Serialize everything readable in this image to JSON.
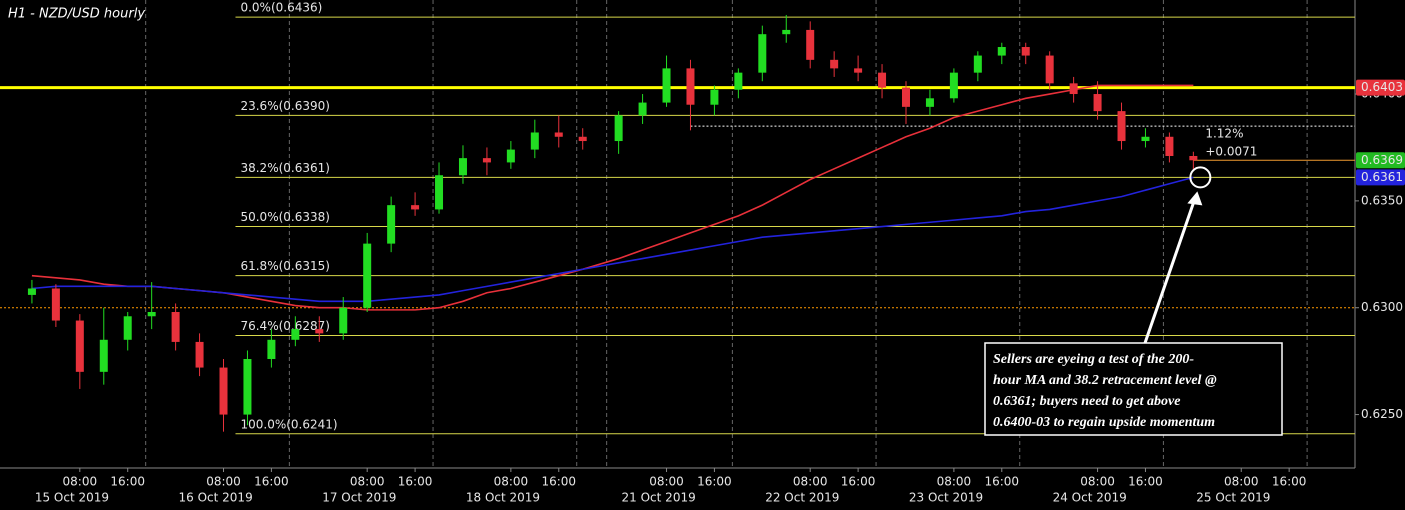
{
  "chart_data": {
    "type": "candlestick",
    "title": "H1 - NZD/USD hourly",
    "xlim": [
      "2019-10-14T18:40",
      "2019-10-26T03:00"
    ],
    "x_gap": [
      "2019-10-19T00:00",
      "2019-10-20T22:00"
    ],
    "ylim": [
      0.6225,
      0.6444
    ],
    "yticks": [
      {
        "value": 0.625,
        "label": "0.6250"
      },
      {
        "value": 0.63,
        "label": "0.6300"
      },
      {
        "value": 0.635,
        "label": "0.6350"
      },
      {
        "value": 0.64,
        "label": "0.6400"
      }
    ],
    "xticks": [
      {
        "value": "2019-10-15T08:00",
        "label": "08:00"
      },
      {
        "value": "2019-10-15T16:00",
        "label": "16:00"
      },
      {
        "value": "2019-10-16T08:00",
        "label": "08:00"
      },
      {
        "value": "2019-10-16T16:00",
        "label": "16:00"
      },
      {
        "value": "2019-10-17T08:00",
        "label": "08:00"
      },
      {
        "value": "2019-10-17T16:00",
        "label": "16:00"
      },
      {
        "value": "2019-10-18T08:00",
        "label": "08:00"
      },
      {
        "value": "2019-10-18T16:00",
        "label": "16:00"
      },
      {
        "value": "2019-10-21T08:00",
        "label": "08:00"
      },
      {
        "value": "2019-10-21T16:00",
        "label": "16:00"
      },
      {
        "value": "2019-10-22T08:00",
        "label": "08:00"
      },
      {
        "value": "2019-10-22T16:00",
        "label": "16:00"
      },
      {
        "value": "2019-10-23T08:00",
        "label": "08:00"
      },
      {
        "value": "2019-10-23T16:00",
        "label": "16:00"
      },
      {
        "value": "2019-10-24T08:00",
        "label": "08:00"
      },
      {
        "value": "2019-10-24T16:00",
        "label": "16:00"
      },
      {
        "value": "2019-10-25T08:00",
        "label": "08:00"
      },
      {
        "value": "2019-10-25T16:00",
        "label": "16:00"
      }
    ],
    "date_labels": [
      {
        "value": "2019-10-15",
        "label": "15 Oct 2019"
      },
      {
        "value": "2019-10-16",
        "label": "16 Oct 2019"
      },
      {
        "value": "2019-10-17",
        "label": "17 Oct 2019"
      },
      {
        "value": "2019-10-18",
        "label": "18 Oct 2019"
      },
      {
        "value": "2019-10-21",
        "label": "21 Oct 2019"
      },
      {
        "value": "2019-10-22",
        "label": "22 Oct 2019"
      },
      {
        "value": "2019-10-23",
        "label": "23 Oct 2019"
      },
      {
        "value": "2019-10-24",
        "label": "24 Oct 2019"
      },
      {
        "value": "2019-10-25",
        "label": "25 Oct 2019"
      }
    ],
    "x_separators": [
      "2019-10-15T19:00",
      "2019-10-16T19:00",
      "2019-10-17T19:00",
      "2019-10-18T19:00",
      "2019-10-20T19:00",
      "2019-10-21T19:00",
      "2019-10-22T19:00",
      "2019-10-23T19:00",
      "2019-10-24T19:00",
      "2019-10-25T19:00"
    ],
    "up_color": "#22dd22",
    "down_color": "#e8323c",
    "x": [
      "2019-10-15T00:00",
      "2019-10-15T04:00",
      "2019-10-15T08:00",
      "2019-10-15T12:00",
      "2019-10-15T16:00",
      "2019-10-15T20:00",
      "2019-10-16T00:00",
      "2019-10-16T04:00",
      "2019-10-16T08:00",
      "2019-10-16T12:00",
      "2019-10-16T16:00",
      "2019-10-16T20:00",
      "2019-10-17T00:00",
      "2019-10-17T04:00",
      "2019-10-17T08:00",
      "2019-10-17T12:00",
      "2019-10-17T16:00",
      "2019-10-17T20:00",
      "2019-10-18T00:00",
      "2019-10-18T04:00",
      "2019-10-18T08:00",
      "2019-10-18T12:00",
      "2019-10-18T16:00",
      "2019-10-18T20:00",
      "2019-10-21T00:00",
      "2019-10-21T04:00",
      "2019-10-21T08:00",
      "2019-10-21T12:00",
      "2019-10-21T16:00",
      "2019-10-21T20:00",
      "2019-10-22T00:00",
      "2019-10-22T04:00",
      "2019-10-22T08:00",
      "2019-10-22T12:00",
      "2019-10-22T16:00",
      "2019-10-22T20:00",
      "2019-10-23T00:00",
      "2019-10-23T04:00",
      "2019-10-23T08:00",
      "2019-10-23T12:00",
      "2019-10-23T16:00",
      "2019-10-23T20:00",
      "2019-10-24T00:00",
      "2019-10-24T04:00",
      "2019-10-24T08:00",
      "2019-10-24T12:00",
      "2019-10-24T16:00",
      "2019-10-24T20:00",
      "2019-10-25T00:00"
    ],
    "open": [
      0.6306,
      0.6309,
      0.6294,
      0.627,
      0.6285,
      0.6296,
      0.6298,
      0.6284,
      0.6272,
      0.625,
      0.6276,
      0.6285,
      0.629,
      0.6288,
      0.63,
      0.633,
      0.6348,
      0.6346,
      0.6362,
      0.637,
      0.6368,
      0.6374,
      0.6382,
      0.638,
      0.6378,
      0.639,
      0.6396,
      0.6412,
      0.6395,
      0.6402,
      0.641,
      0.6428,
      0.643,
      0.6416,
      0.6412,
      0.641,
      0.6403,
      0.6394,
      0.6398,
      0.641,
      0.6418,
      0.6422,
      0.6418,
      0.6405,
      0.64,
      0.6392,
      0.6378,
      0.638,
      0.6371
    ],
    "high": [
      0.6313,
      0.6311,
      0.6297,
      0.63,
      0.6298,
      0.6312,
      0.6302,
      0.6288,
      0.6276,
      0.628,
      0.629,
      0.6296,
      0.6296,
      0.6305,
      0.6335,
      0.6352,
      0.6354,
      0.6368,
      0.6376,
      0.6375,
      0.6378,
      0.6388,
      0.639,
      0.6384,
      0.6392,
      0.64,
      0.6418,
      0.6416,
      0.6404,
      0.6412,
      0.6432,
      0.6437,
      0.6434,
      0.642,
      0.6418,
      0.6414,
      0.6406,
      0.6402,
      0.6412,
      0.642,
      0.6424,
      0.6424,
      0.642,
      0.6408,
      0.6406,
      0.6396,
      0.6384,
      0.6382,
      0.6373
    ],
    "low": [
      0.6302,
      0.6291,
      0.6262,
      0.6264,
      0.628,
      0.629,
      0.628,
      0.6268,
      0.6242,
      0.6245,
      0.6272,
      0.6282,
      0.6284,
      0.6285,
      0.6298,
      0.6326,
      0.6343,
      0.6344,
      0.6358,
      0.6362,
      0.6365,
      0.637,
      0.6375,
      0.6374,
      0.6372,
      0.6386,
      0.6394,
      0.6383,
      0.639,
      0.6398,
      0.6406,
      0.6424,
      0.6412,
      0.6408,
      0.6406,
      0.6398,
      0.6386,
      0.639,
      0.6396,
      0.6406,
      0.6414,
      0.6414,
      0.6402,
      0.6396,
      0.6388,
      0.6374,
      0.6375,
      0.6368,
      0.6364
    ],
    "close": [
      0.6309,
      0.6294,
      0.627,
      0.6285,
      0.6296,
      0.6298,
      0.6284,
      0.6272,
      0.625,
      0.6276,
      0.6285,
      0.629,
      0.6288,
      0.63,
      0.633,
      0.6348,
      0.6346,
      0.6362,
      0.637,
      0.6368,
      0.6374,
      0.6382,
      0.638,
      0.6378,
      0.639,
      0.6396,
      0.6412,
      0.6395,
      0.6402,
      0.641,
      0.6428,
      0.643,
      0.6416,
      0.6412,
      0.641,
      0.6403,
      0.6394,
      0.6398,
      0.641,
      0.6418,
      0.6422,
      0.6418,
      0.6405,
      0.64,
      0.6392,
      0.6378,
      0.638,
      0.6371,
      0.6369
    ],
    "series": [
      {
        "color": "#e8303a",
        "values": [
          0.6315,
          0.6314,
          0.6313,
          0.6311,
          0.631,
          0.631,
          0.6309,
          0.6308,
          0.6307,
          0.6305,
          0.6303,
          0.6301,
          0.63,
          0.63,
          0.6299,
          0.6299,
          0.6299,
          0.63,
          0.6303,
          0.6307,
          0.6309,
          0.6312,
          0.6315,
          0.6318,
          0.6323,
          0.6327,
          0.6331,
          0.6335,
          0.6339,
          0.6343,
          0.6348,
          0.6354,
          0.636,
          0.6365,
          0.637,
          0.6375,
          0.638,
          0.6384,
          0.6389,
          0.6392,
          0.6395,
          0.6398,
          0.64,
          0.6402,
          0.6404,
          0.6404,
          0.6404,
          0.6404,
          0.6404
        ]
      },
      {
        "color": "#2323dd",
        "values": [
          0.6309,
          0.631,
          0.631,
          0.631,
          0.631,
          0.631,
          0.6309,
          0.6308,
          0.6307,
          0.6306,
          0.6305,
          0.6304,
          0.6303,
          0.6303,
          0.6303,
          0.6304,
          0.6305,
          0.6306,
          0.6308,
          0.631,
          0.6312,
          0.6314,
          0.6316,
          0.6318,
          0.6321,
          0.6323,
          0.6325,
          0.6327,
          0.6329,
          0.6331,
          0.6333,
          0.6334,
          0.6335,
          0.6336,
          0.6337,
          0.6338,
          0.6339,
          0.634,
          0.6341,
          0.6342,
          0.6343,
          0.6345,
          0.6346,
          0.6348,
          0.635,
          0.6352,
          0.6355,
          0.6358,
          0.6361
        ]
      }
    ],
    "fib_levels": [
      {
        "value": 0.6436,
        "label": "0.0%(0.6436)"
      },
      {
        "value": 0.639,
        "label": "23.6%(0.6390)"
      },
      {
        "value": 0.6361,
        "label": "38.2%(0.6361)"
      },
      {
        "value": 0.6338,
        "label": "50.0%(0.6338)"
      },
      {
        "value": 0.6315,
        "label": "61.8%(0.6315)"
      },
      {
        "value": 0.6287,
        "label": "76.4%(0.6287)"
      },
      {
        "value": 0.6241,
        "label": "100.0%(0.6241)"
      }
    ],
    "fib_from": "2019-10-16T10:00",
    "fib_color": "#d8d84a",
    "levels": [
      {
        "value": 0.6403,
        "color": "#ffff00",
        "style": "solid"
      },
      {
        "value": 0.63,
        "color": "#ff9900",
        "style": "dotted"
      },
      {
        "value": 0.6385,
        "from": "2019-10-21T12:00",
        "color": "#ffffff",
        "style": "dotted"
      },
      {
        "value": 0.6369,
        "from": "2019-10-25T00:00",
        "color": "#f09a30",
        "style": "solid"
      }
    ],
    "price_tags": [
      {
        "value": 0.6403,
        "color": "#e8323c"
      },
      {
        "value": 0.6369,
        "color": "#22bb22"
      },
      {
        "value": 0.6361,
        "color": "#2323dd"
      }
    ],
    "change_text": [
      "1.12%",
      "+0.0071"
    ],
    "annotation": [
      "Sellers are eyeing a test of the 200-",
      "hour MA and 38.2 retracement level @",
      "0.6361; buyers need to get above",
      "0.6400-03 to regain upside momentum"
    ]
  }
}
